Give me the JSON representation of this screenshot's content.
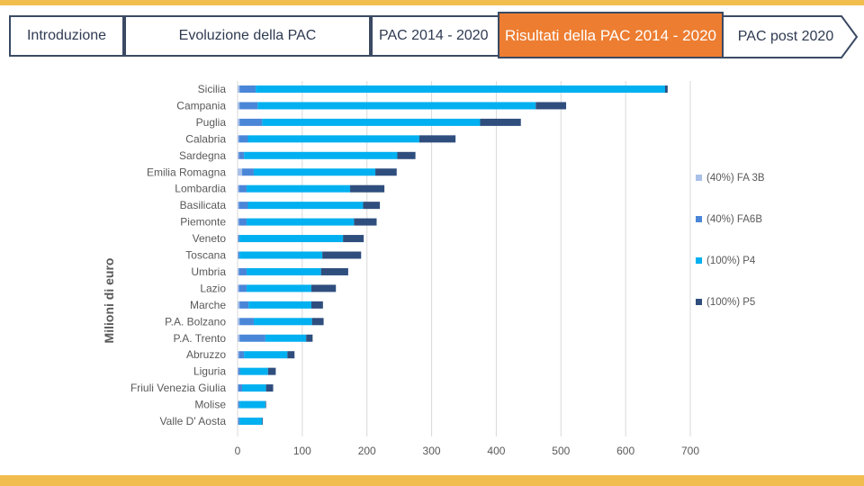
{
  "colors": {
    "accent": "#ed7d31",
    "banner": "#f2bd4f",
    "tab_border": "#3b4a63",
    "fa3b": "#a9c1e8",
    "fa6b": "#4a86d8",
    "p4": "#00b0f0",
    "p5": "#2f4e7e"
  },
  "nav": {
    "tabs": [
      {
        "label": "Introduzione"
      },
      {
        "label": "Evoluzione della PAC"
      },
      {
        "label": "PAC 2014 - 2020"
      },
      {
        "label": "Risultati della PAC 2014 - 2020"
      },
      {
        "label": "PAC post 2020"
      }
    ],
    "active_index": 3
  },
  "chart_data": {
    "type": "bar",
    "orientation": "horizontal",
    "stacked": true,
    "title": "",
    "xlabel": "",
    "ylabel": "Milioni di euro",
    "xlim": [
      0,
      700
    ],
    "xticks": [
      0,
      100,
      200,
      300,
      400,
      500,
      600,
      700
    ],
    "grid": true,
    "legend_position": "right",
    "categories": [
      "Sicilia",
      "Campania",
      "Puglia",
      "Calabria",
      "Sardegna",
      "Emilia Romagna",
      "Lombardia",
      "Basilicata",
      "Piemonte",
      "Veneto",
      "Toscana",
      "Umbria",
      "Lazio",
      "Marche",
      "P.A. Bolzano",
      "P.A. Trento",
      "Abruzzo",
      "Liguria",
      "Friuli Venezia Giulia",
      "Molise",
      "Valle D' Aosta"
    ],
    "series": [
      {
        "name": "(40%) FA 3B",
        "values": [
          3,
          3,
          3,
          2,
          2,
          7,
          2,
          2,
          2,
          1,
          1,
          2,
          2,
          3,
          3,
          3,
          2,
          1,
          1,
          1,
          1
        ]
      },
      {
        "name": "(40%) FA6B",
        "values": [
          25,
          28,
          35,
          14,
          8,
          18,
          12,
          14,
          12,
          2,
          2,
          12,
          12,
          14,
          22,
          40,
          8,
          3,
          6,
          2,
          2
        ]
      },
      {
        "name": "(100%) P4",
        "values": [
          633,
          430,
          337,
          265,
          237,
          188,
          160,
          178,
          166,
          160,
          128,
          115,
          100,
          97,
          90,
          63,
          67,
          43,
          37,
          40,
          35
        ]
      },
      {
        "name": "(100%) P5",
        "values": [
          4,
          47,
          63,
          56,
          28,
          33,
          53,
          26,
          35,
          32,
          60,
          42,
          38,
          18,
          18,
          10,
          11,
          12,
          11,
          1,
          1
        ]
      }
    ]
  }
}
